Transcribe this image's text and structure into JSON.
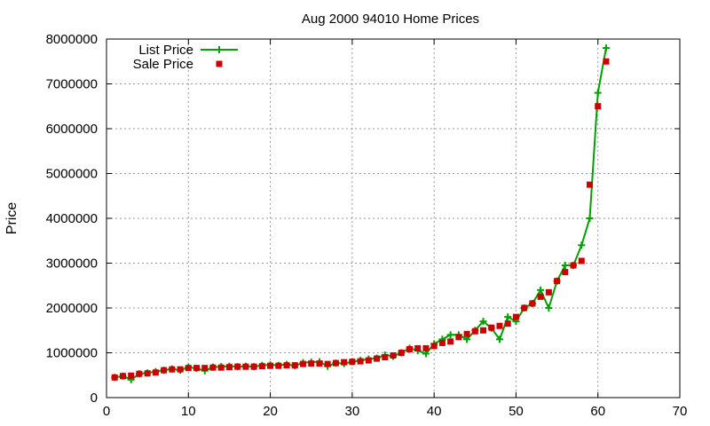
{
  "chart_data": {
    "type": "line",
    "title": "Aug 2000 94010 Home Prices",
    "xlabel": "",
    "ylabel": "Price",
    "xlim": [
      0,
      70
    ],
    "ylim": [
      0,
      8000000
    ],
    "x_ticks": [
      "0",
      "10",
      "20",
      "30",
      "40",
      "50",
      "60",
      "70"
    ],
    "y_ticks": [
      "0",
      "1000000",
      "2000000",
      "3000000",
      "4000000",
      "5000000",
      "6000000",
      "7000000",
      "8000000"
    ],
    "grid": true,
    "legend_position": "top-left",
    "series": [
      {
        "name": "List Price",
        "style": "line+plus",
        "color": "#00a000",
        "x": [
          1,
          2,
          3,
          4,
          5,
          6,
          7,
          8,
          9,
          10,
          11,
          12,
          13,
          14,
          15,
          16,
          17,
          18,
          19,
          20,
          21,
          22,
          23,
          24,
          25,
          26,
          27,
          28,
          29,
          30,
          31,
          32,
          33,
          34,
          35,
          36,
          37,
          38,
          39,
          40,
          41,
          42,
          43,
          44,
          45,
          46,
          47,
          48,
          49,
          50,
          51,
          52,
          53,
          54,
          55,
          56,
          57,
          58,
          59,
          60,
          61
        ],
        "values": [
          450000,
          480000,
          400000,
          530000,
          550000,
          580000,
          610000,
          640000,
          610000,
          680000,
          650000,
          600000,
          680000,
          690000,
          700000,
          690000,
          700000,
          690000,
          720000,
          730000,
          720000,
          740000,
          710000,
          780000,
          790000,
          800000,
          700000,
          770000,
          760000,
          800000,
          830000,
          860000,
          880000,
          950000,
          920000,
          1000000,
          1100000,
          1050000,
          980000,
          1200000,
          1300000,
          1400000,
          1400000,
          1300000,
          1500000,
          1700000,
          1550000,
          1300000,
          1800000,
          1700000,
          2000000,
          2100000,
          2400000,
          2000000,
          2600000,
          2950000,
          2950000,
          3400000,
          4000000,
          6800000,
          7800000
        ]
      },
      {
        "name": "Sale Price",
        "style": "square",
        "color": "#cc0000",
        "x": [
          1,
          2,
          3,
          4,
          5,
          6,
          7,
          8,
          9,
          10,
          11,
          12,
          13,
          14,
          15,
          16,
          17,
          18,
          19,
          20,
          21,
          22,
          23,
          24,
          25,
          26,
          27,
          28,
          29,
          30,
          31,
          32,
          33,
          34,
          35,
          36,
          37,
          38,
          39,
          40,
          41,
          42,
          43,
          44,
          45,
          46,
          47,
          48,
          49,
          50,
          51,
          52,
          53,
          54,
          55,
          56,
          57,
          58,
          59,
          60,
          61
        ],
        "values": [
          450000,
          480000,
          490000,
          530000,
          540000,
          560000,
          610000,
          630000,
          630000,
          660000,
          660000,
          660000,
          670000,
          670000,
          680000,
          690000,
          690000,
          690000,
          700000,
          710000,
          710000,
          720000,
          720000,
          750000,
          760000,
          760000,
          750000,
          770000,
          790000,
          800000,
          810000,
          830000,
          870000,
          900000,
          940000,
          1000000,
          1080000,
          1100000,
          1100000,
          1150000,
          1220000,
          1250000,
          1350000,
          1420000,
          1480000,
          1500000,
          1560000,
          1600000,
          1650000,
          1800000,
          2000000,
          2100000,
          2250000,
          2350000,
          2600000,
          2800000,
          2950000,
          3050000,
          4750000,
          6500000,
          7500000
        ]
      }
    ]
  }
}
